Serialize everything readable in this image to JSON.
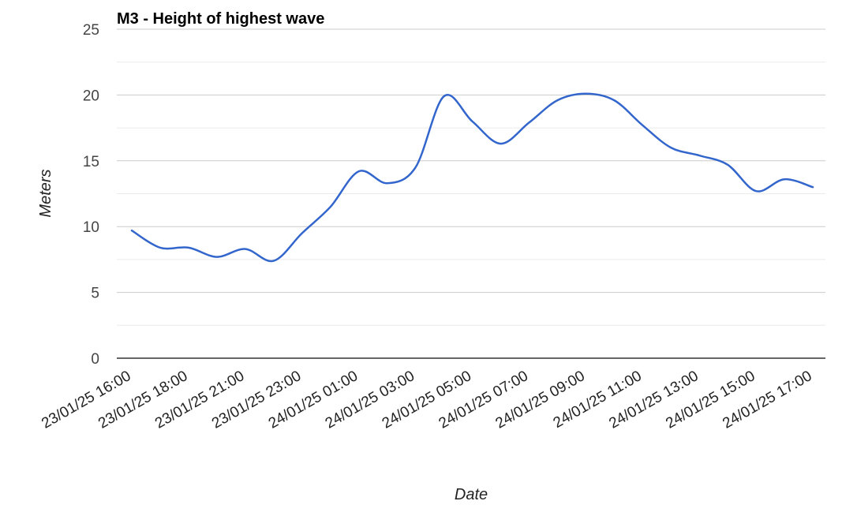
{
  "chart_data": {
    "type": "line",
    "title": "M3 - Height of highest wave",
    "xlabel": "Date",
    "ylabel": "Meters",
    "ylim": [
      0,
      25
    ],
    "yticks": [
      0,
      5,
      10,
      15,
      20,
      25
    ],
    "grid": true,
    "x_tick_labels": [
      "23/01/25 16:00",
      "23/01/25 18:00",
      "23/01/25 21:00",
      "23/01/25 23:00",
      "24/01/25 01:00",
      "24/01/25 03:00",
      "24/01/25 05:00",
      "24/01/25 07:00",
      "24/01/25 09:00",
      "24/01/25 11:00",
      "24/01/25 13:00",
      "24/01/25 15:00",
      "24/01/25 17:00"
    ],
    "series": [
      {
        "name": "Height of highest wave",
        "color": "#3366cc",
        "values": [
          9.7,
          8.4,
          8.4,
          7.7,
          8.3,
          7.4,
          9.5,
          11.5,
          14.2,
          13.3,
          14.5,
          19.9,
          18.0,
          16.3,
          17.9,
          19.6,
          20.1,
          19.6,
          17.7,
          16.0,
          15.4,
          14.7,
          12.7,
          13.6,
          13.0
        ]
      }
    ]
  }
}
